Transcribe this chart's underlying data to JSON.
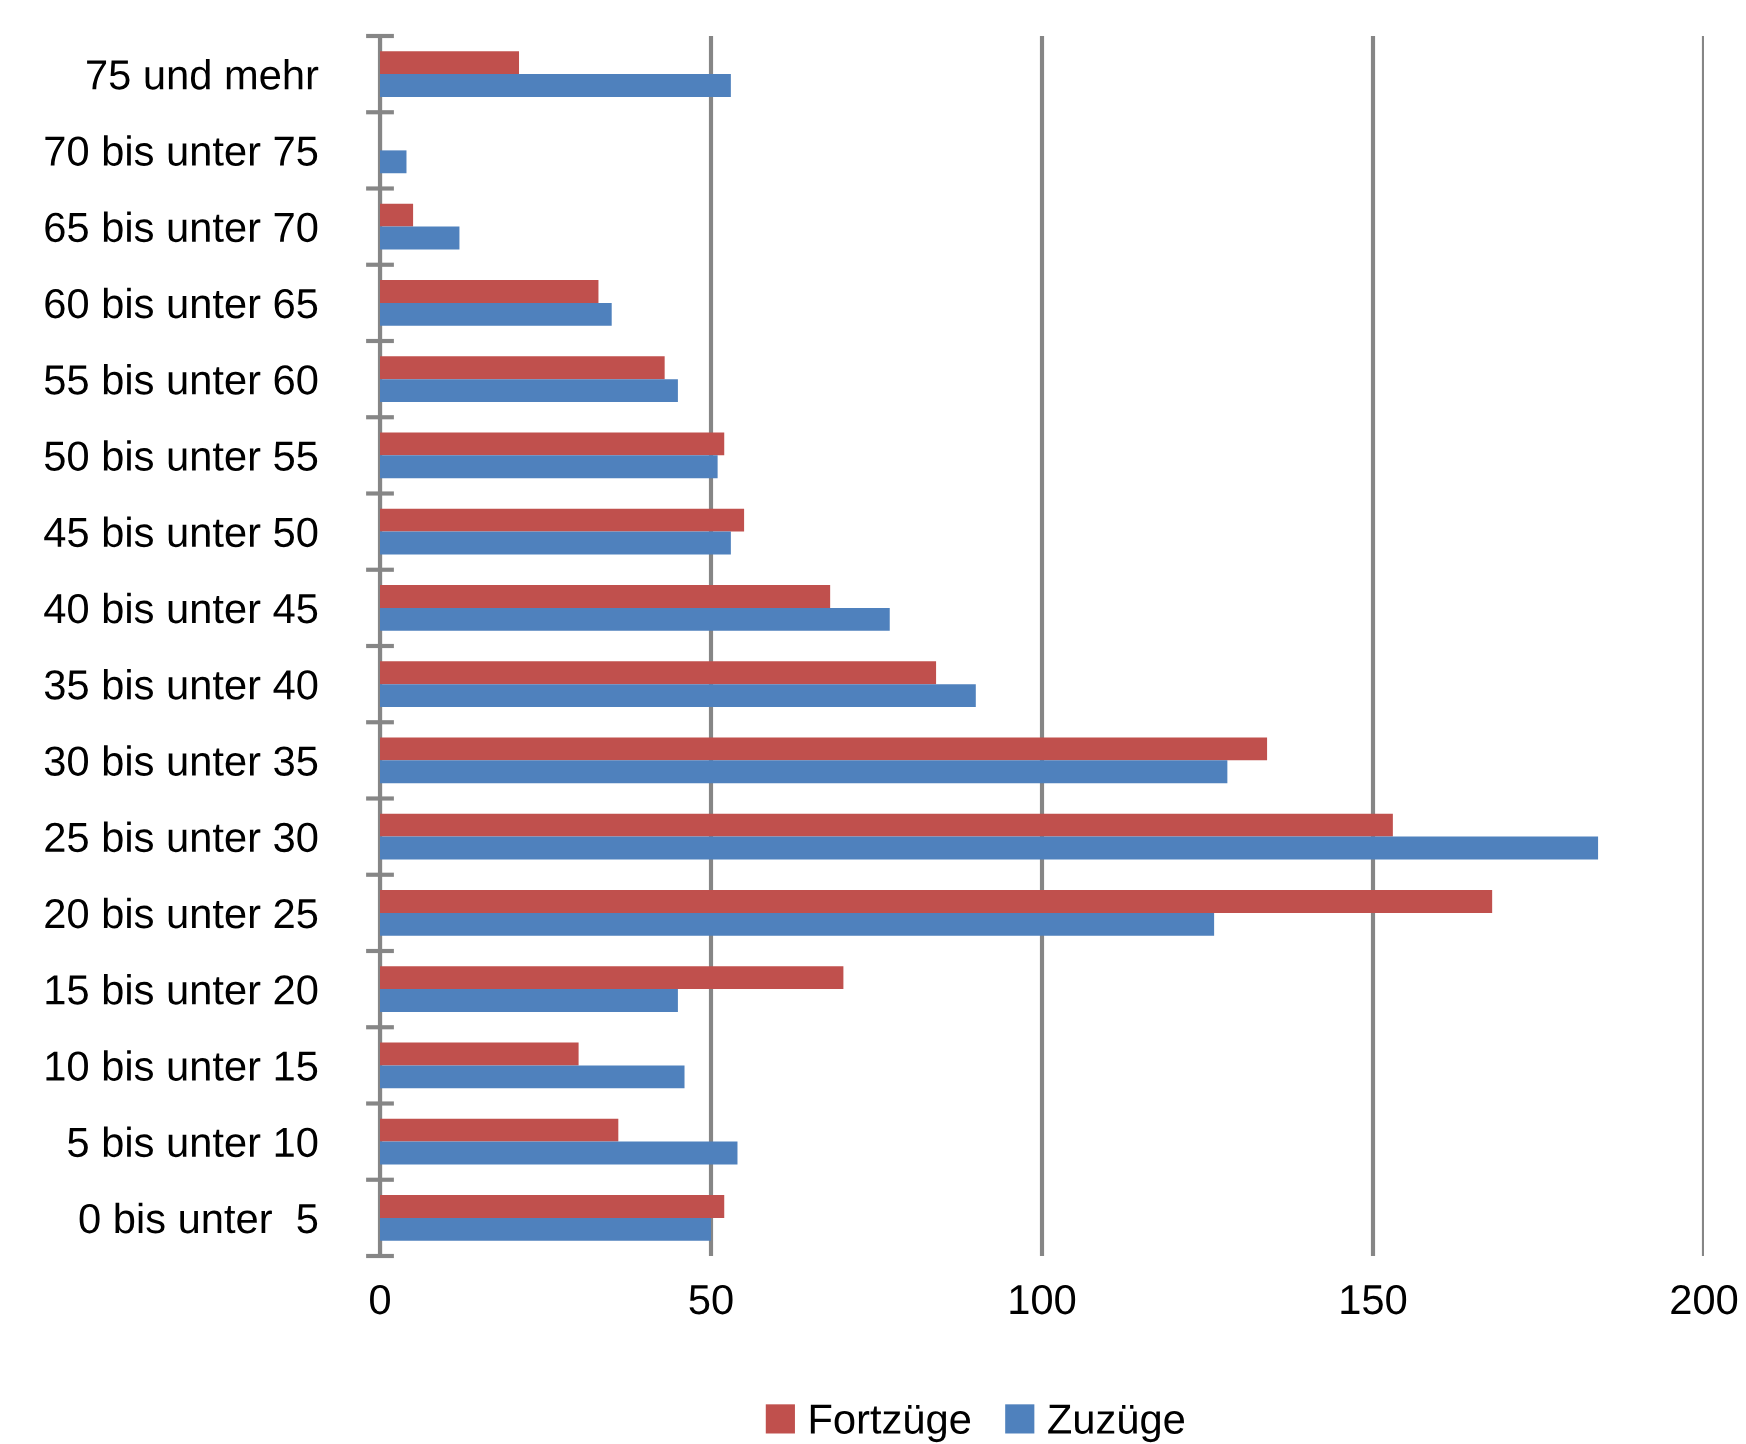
{
  "chart_data": {
    "type": "bar",
    "orientation": "horizontal",
    "categories": [
      "75 und mehr",
      "70 bis unter 75",
      "65 bis unter 70",
      "60 bis unter 65",
      "55 bis unter 60",
      "50 bis unter 55",
      "45 bis unter 50",
      "40 bis unter 45",
      "35 bis unter 40",
      "30 bis unter 35",
      "25 bis unter 30",
      "20 bis unter 25",
      "15 bis unter 20",
      "10 bis unter 15",
      "5 bis unter 10",
      "0 bis unter  5"
    ],
    "series": [
      {
        "name": "Fortzüge",
        "color": "#c0504d",
        "values": [
          21,
          0,
          5,
          33,
          43,
          52,
          55,
          68,
          84,
          134,
          153,
          168,
          70,
          30,
          36,
          52
        ]
      },
      {
        "name": "Zuzüge",
        "color": "#4f81bd",
        "values": [
          53,
          4,
          12,
          35,
          45,
          51,
          53,
          77,
          90,
          128,
          184,
          126,
          45,
          46,
          54,
          50
        ]
      }
    ],
    "xlim": [
      0,
      200
    ],
    "xticks": [
      0,
      50,
      100,
      150,
      200
    ],
    "grid": "x",
    "legend": "bottom"
  }
}
